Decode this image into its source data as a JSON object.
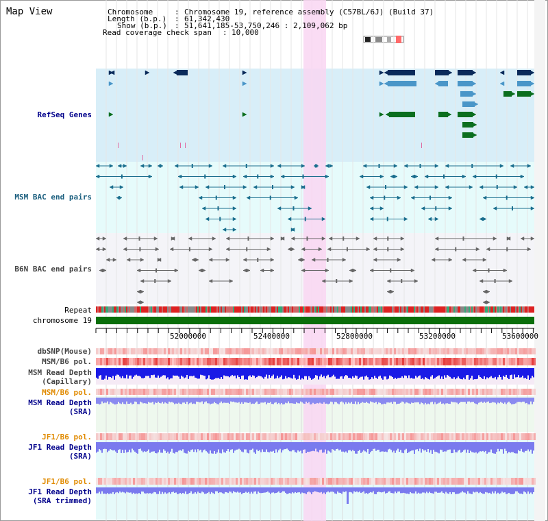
{
  "title": "Map View",
  "header": {
    "chromosome_key": "Chromosome",
    "chromosome_value": "Chromosome 19, reference assembly (C57BL/6J) (Build 37)",
    "length_key": "Length (b.p.)",
    "length_value": "61,342,430",
    "show_key": "Show (b.p.)",
    "show_value": "51,641,185-53,750,246 : 2,109,062 bp",
    "coverage_key": "Read coverage check span",
    "coverage_value": "10,000"
  },
  "tracks": {
    "refseq": "RefSeq Genes",
    "msm_bac": "MSM BAC end pairs",
    "b6n_bac": "B6N BAC end pairs",
    "repeat": "Repeat",
    "chromosome": "chromosome 19",
    "dbsnp": "dbSNP(Mouse)",
    "msm_pol1": "MSM/B6 pol.",
    "msm_depth_cap_1": "MSM Read Depth",
    "msm_depth_cap_2": "(Capillary)",
    "msm_pol2": "MSM/B6 pol.",
    "msm_depth_sra_1": "MSM Read Depth",
    "msm_depth_sra_2": "(SRA)",
    "jf1_pol1": "JF1/B6 pol.",
    "jf1_depth_sra_1": "JF1 Read Depth",
    "jf1_depth_sra_2": "(SRA)",
    "jf1_pol2": "JF1/B6 pol.",
    "jf1_depth_trim_1": "JF1 Read Depth",
    "jf1_depth_trim_2": "(SRA trimmed)"
  },
  "axis": {
    "ticks": [
      "52000000",
      "52400000",
      "52800000",
      "53200000",
      "53600000"
    ]
  },
  "colors": {
    "refseq_bg": "#d8eef8",
    "msm_bac_bg": "#e6fbfb",
    "b6n_bac_bg": "#f4f4f8",
    "highlight": "#f9d6f2",
    "chromosome": "#0a6e0a",
    "gene_dark": "#0a2a5a",
    "gene_mid": "#4a96c8",
    "gene_green": "#0b6e1e",
    "bac_teal": "#1a6e8e",
    "bac_gray": "#666666"
  }
}
